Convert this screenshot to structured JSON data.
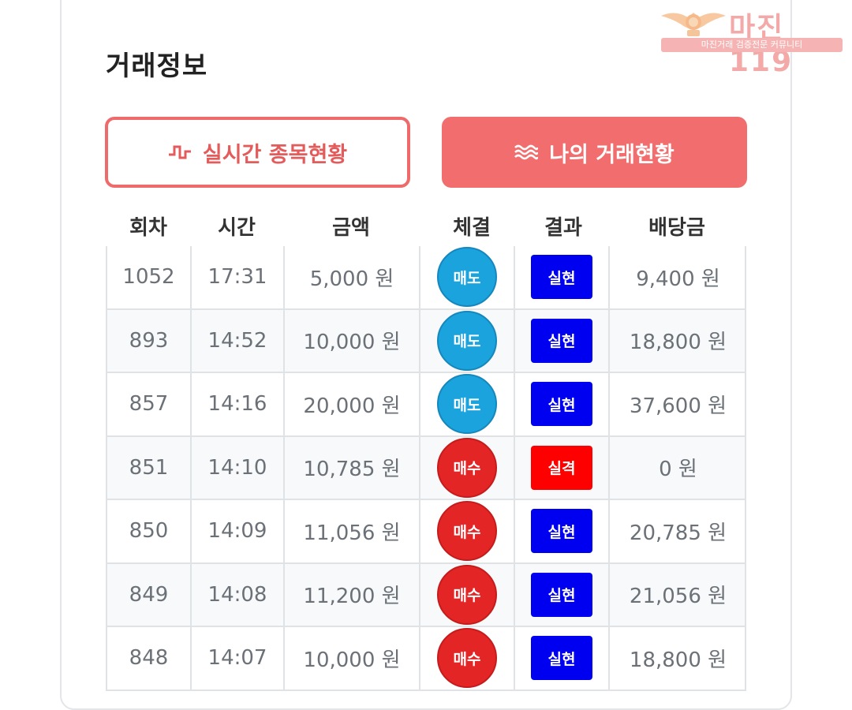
{
  "section_title": "거래정보",
  "watermark": {
    "text": "마진119",
    "subtitle": "마진거래 검증전문 커뮤니티"
  },
  "buttons": {
    "realtime_label": "실시간 종목현황",
    "mytrades_label": "나의 거래현황"
  },
  "columns": {
    "round": "회차",
    "time": "시간",
    "amount": "금액",
    "execution": "체결",
    "result": "결과",
    "payout": "배당금"
  },
  "rows": [
    {
      "round": "1052",
      "time": "17:31",
      "amount": "5,000 원",
      "execution": "매도",
      "result": "실현",
      "payout": "9,400 원"
    },
    {
      "round": "893",
      "time": "14:52",
      "amount": "10,000 원",
      "execution": "매도",
      "result": "실현",
      "payout": "18,800 원"
    },
    {
      "round": "857",
      "time": "14:16",
      "amount": "20,000 원",
      "execution": "매도",
      "result": "실현",
      "payout": "37,600 원"
    },
    {
      "round": "851",
      "time": "14:10",
      "amount": "10,785 원",
      "execution": "매수",
      "result": "실격",
      "payout": "0 원"
    },
    {
      "round": "850",
      "time": "14:09",
      "amount": "11,056 원",
      "execution": "매수",
      "result": "실현",
      "payout": "20,785 원"
    },
    {
      "round": "849",
      "time": "14:08",
      "amount": "11,200 원",
      "execution": "매수",
      "result": "실현",
      "payout": "21,056 원"
    },
    {
      "round": "848",
      "time": "14:07",
      "amount": "10,000 원",
      "execution": "매수",
      "result": "실현",
      "payout": "18,800 원"
    }
  ],
  "colors": {
    "accent": "#f26d6d",
    "sell": "#1aa3dd",
    "buy": "#e42525",
    "realized": "#0000f0",
    "disqualified": "#ff0000"
  }
}
